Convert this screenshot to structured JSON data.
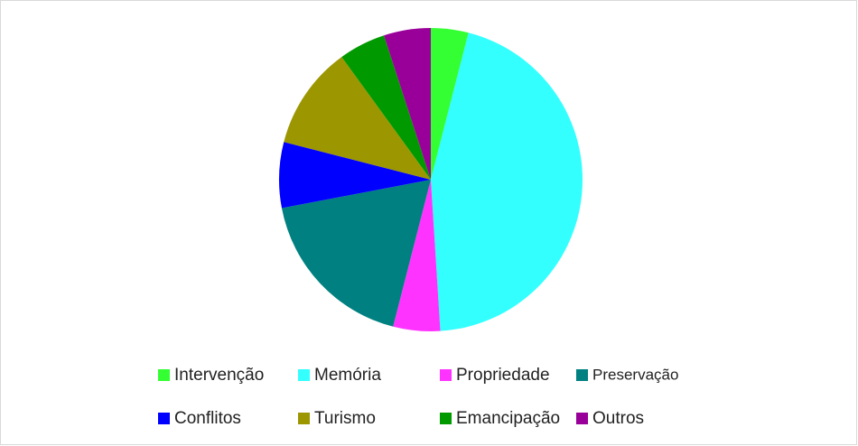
{
  "chart_data": {
    "type": "pie",
    "categories": [
      "Intervenção",
      "Memória",
      "Propriedade",
      "Preservação",
      "Conflitos",
      "Turismo",
      "Emancipação",
      "Outros"
    ],
    "values": [
      4,
      45,
      5,
      18,
      7,
      11,
      5,
      5
    ],
    "colors": [
      "#33ff33",
      "#33ffff",
      "#ff33ff",
      "#008080",
      "#0000ff",
      "#9c9600",
      "#009900",
      "#990099"
    ],
    "legend": "bottom"
  }
}
